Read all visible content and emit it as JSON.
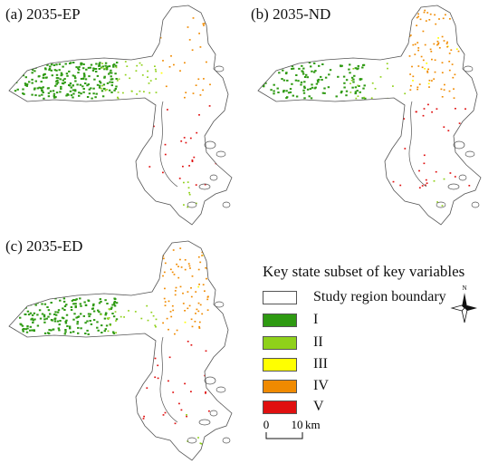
{
  "panels": [
    {
      "id": "a",
      "title": "(a) 2035-EP",
      "density": [
        1.0,
        0.55,
        0.05,
        0.25,
        0.35
      ]
    },
    {
      "id": "b",
      "title": "(b) 2035-ND",
      "density": [
        0.55,
        0.25,
        0.35,
        0.75,
        0.45
      ]
    },
    {
      "id": "c",
      "title": "(c) 2035-ED",
      "density": [
        0.85,
        0.35,
        0.15,
        0.7,
        0.45
      ]
    }
  ],
  "legend": {
    "title": "Key state subset of key variables",
    "boundary_label": "Study region boundary",
    "classes": [
      {
        "label": "I",
        "color": "#2e9a12"
      },
      {
        "label": "II",
        "color": "#8fd11a"
      },
      {
        "label": "III",
        "color": "#ffff00"
      },
      {
        "label": "IV",
        "color": "#f08a00"
      },
      {
        "label": "V",
        "color": "#e01010"
      }
    ]
  },
  "scale_bar": {
    "start": "0",
    "end": "10",
    "unit": "km"
  },
  "north_arrow": {
    "label": "N"
  }
}
